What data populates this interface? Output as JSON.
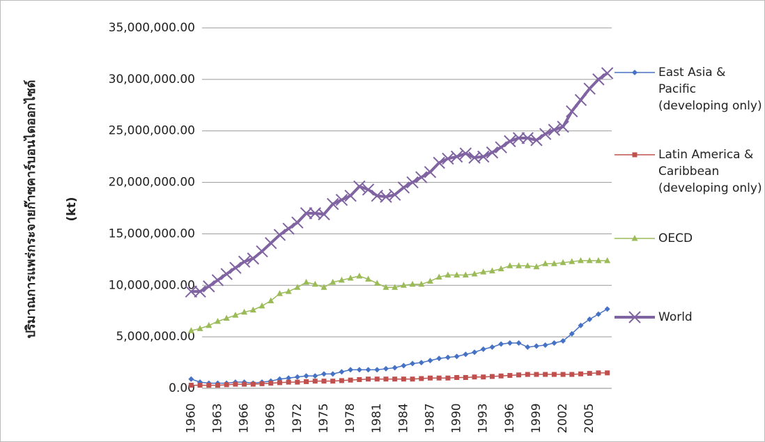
{
  "chart_data": {
    "type": "line",
    "ylabel": [
      "ปริมาณการแพร่กระจายก๊าซคาร์บอนไดออกไซด์",
      "(kt)"
    ],
    "categories": [
      "1960",
      null,
      null,
      "1963",
      null,
      null,
      "1966",
      null,
      null,
      "1969",
      null,
      null,
      "1972",
      null,
      null,
      "1975",
      null,
      null,
      "1978",
      null,
      null,
      "1981",
      null,
      null,
      "1984",
      null,
      null,
      "1987",
      null,
      null,
      "1990",
      null,
      null,
      "1993",
      null,
      null,
      "1996",
      null,
      null,
      "1999",
      null,
      null,
      "2002",
      null,
      null,
      "2005",
      null,
      null
    ],
    "series": [
      {
        "name": "East Asia & Pacific (developing only)",
        "color": "#4572c4",
        "marker": "diamond",
        "values": [
          900000,
          600000,
          500000,
          500000,
          500000,
          600000,
          600000,
          500000,
          600000,
          700000,
          900000,
          1000000,
          1100000,
          1200000,
          1200000,
          1400000,
          1400000,
          1600000,
          1800000,
          1800000,
          1800000,
          1800000,
          1900000,
          2000000,
          2200000,
          2400000,
          2500000,
          2700000,
          2900000,
          3000000,
          3100000,
          3300000,
          3500000,
          3800000,
          4000000,
          4300000,
          4400000,
          4400000,
          4000000,
          4100000,
          4200000,
          4400000,
          4600000,
          5300000,
          6100000,
          6700000,
          7200000,
          7700000
        ]
      },
      {
        "name": "Latin America & Caribbean (developing only)",
        "color": "#c0504d",
        "marker": "square",
        "values": [
          300000,
          300000,
          300000,
          300000,
          350000,
          400000,
          400000,
          400000,
          450000,
          500000,
          550000,
          600000,
          600000,
          650000,
          700000,
          700000,
          700000,
          750000,
          800000,
          850000,
          900000,
          900000,
          900000,
          900000,
          900000,
          900000,
          950000,
          1000000,
          1000000,
          1000000,
          1050000,
          1050000,
          1100000,
          1100000,
          1150000,
          1200000,
          1250000,
          1300000,
          1350000,
          1350000,
          1350000,
          1350000,
          1350000,
          1350000,
          1400000,
          1450000,
          1500000,
          1500000
        ]
      },
      {
        "name": "OECD",
        "color": "#9bbb59",
        "marker": "triangle",
        "values": [
          5600000,
          5800000,
          6100000,
          6500000,
          6800000,
          7100000,
          7400000,
          7600000,
          8000000,
          8500000,
          9200000,
          9400000,
          9800000,
          10300000,
          10100000,
          9800000,
          10300000,
          10500000,
          10700000,
          10900000,
          10600000,
          10200000,
          9800000,
          9800000,
          10000000,
          10100000,
          10100000,
          10400000,
          10800000,
          11000000,
          11000000,
          11000000,
          11100000,
          11300000,
          11400000,
          11600000,
          11900000,
          11900000,
          11900000,
          11800000,
          12100000,
          12100000,
          12200000,
          12300000,
          12400000,
          12400000,
          12400000,
          12400000
        ]
      },
      {
        "name": "World",
        "color": "#8064a2",
        "marker": "x",
        "values": [
          9400000,
          9400000,
          9900000,
          10500000,
          11100000,
          11700000,
          12300000,
          12600000,
          13300000,
          14100000,
          14900000,
          15500000,
          16100000,
          17000000,
          17000000,
          16900000,
          17900000,
          18300000,
          18700000,
          19600000,
          19300000,
          18700000,
          18600000,
          18800000,
          19500000,
          20000000,
          20500000,
          21000000,
          21900000,
          22300000,
          22500000,
          22800000,
          22400000,
          22500000,
          22900000,
          23400000,
          24000000,
          24300000,
          24300000,
          24100000,
          24700000,
          25100000,
          25400000,
          26900000,
          28000000,
          29100000,
          30000000,
          30600000
        ]
      }
    ],
    "ylim": [
      0,
      35000000
    ],
    "yticks": [
      {
        "value": 0,
        "label": "0.00"
      },
      {
        "value": 5000000,
        "label": "5,000,000.00"
      },
      {
        "value": 10000000,
        "label": "10,000,000.00"
      },
      {
        "value": 15000000,
        "label": "15,000,000.00"
      },
      {
        "value": 20000000,
        "label": "20,000,000.00"
      },
      {
        "value": 25000000,
        "label": "25,000,000.00"
      },
      {
        "value": 30000000,
        "label": "30,000,000.00"
      },
      {
        "value": 35000000,
        "label": "35,000,000.00"
      }
    ],
    "grid": true
  }
}
